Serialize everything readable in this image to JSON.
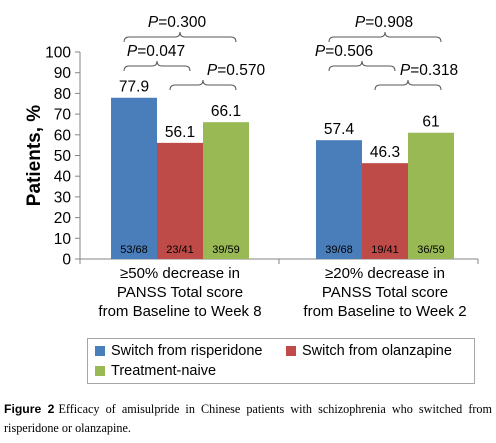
{
  "chart_data": {
    "type": "bar",
    "ylabel": "Patients, %",
    "ylim": [
      0,
      100
    ],
    "yticks": [
      0,
      10,
      20,
      30,
      40,
      50,
      60,
      70,
      80,
      90,
      100
    ],
    "grid": false,
    "legend_position": "bottom",
    "categories": [
      [
        "≥50% decrease in",
        "PANSS Total score",
        "from Baseline to Week 8"
      ],
      [
        "≥20% decrease in",
        "PANSS Total score",
        "from Baseline to Week 2"
      ]
    ],
    "series": [
      {
        "name": "Switch from risperidone",
        "color": "#4a7ebb",
        "values": [
          77.9,
          57.4
        ],
        "value_labels": [
          "77.9",
          "57.4"
        ],
        "counts": [
          "53/68",
          "39/68"
        ]
      },
      {
        "name": "Switch from olanzapine",
        "color": "#be4b48",
        "values": [
          56.1,
          46.3
        ],
        "value_labels": [
          "56.1",
          "46.3"
        ],
        "counts": [
          "23/41",
          "19/41"
        ]
      },
      {
        "name": "Treatment-naive",
        "color": "#98b954",
        "values": [
          66.1,
          61
        ],
        "value_labels": [
          "66.1",
          "61"
        ],
        "counts": [
          "39/59",
          "36/59"
        ]
      }
    ],
    "comparisons": [
      {
        "group": 0,
        "from": 0,
        "to": 2,
        "label": "P=0.300"
      },
      {
        "group": 0,
        "from": 0,
        "to": 1,
        "label": "P=0.047"
      },
      {
        "group": 0,
        "from": 1,
        "to": 2,
        "label": "P=0.570"
      },
      {
        "group": 1,
        "from": 0,
        "to": 2,
        "label": "P=0.908"
      },
      {
        "group": 1,
        "from": 0,
        "to": 1,
        "label": "P=0.506"
      },
      {
        "group": 1,
        "from": 1,
        "to": 2,
        "label": "P=0.318"
      }
    ]
  },
  "caption": {
    "label": "Figure 2",
    "text": "Efficacy of amisulpride in Chinese patients with schizophrenia who switched from risperidone or olanzapine."
  }
}
